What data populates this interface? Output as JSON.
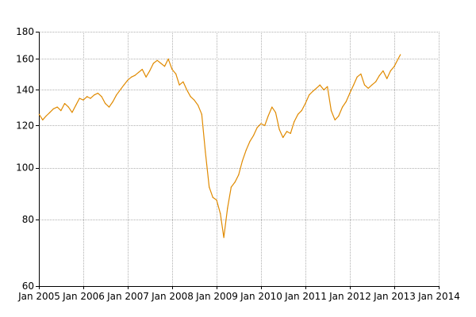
{
  "chart_data": {
    "type": "line",
    "title": "",
    "xlabel": "",
    "ylabel": "",
    "y_scale": "log",
    "grid": true,
    "legend": "none",
    "xlim": [
      "2005-01-01",
      "2014-01-01"
    ],
    "ylim": [
      60,
      180
    ],
    "x_ticks": [
      "Jan 2005",
      "Jan 2006",
      "Jan 2007",
      "Jan 2008",
      "Jan 2009",
      "Jan 2010",
      "Jan 2011",
      "Jan 2012",
      "Jan 2013",
      "Jan 2014"
    ],
    "y_ticks": [
      60,
      80,
      100,
      120,
      140,
      160,
      180
    ],
    "series": [
      {
        "color": "#e08a00",
        "points": [
          [
            "2005-01-03",
            126
          ],
          [
            "2005-02-01",
            123
          ],
          [
            "2005-03-01",
            125
          ],
          [
            "2005-04-01",
            127
          ],
          [
            "2005-05-01",
            129
          ],
          [
            "2005-06-01",
            130
          ],
          [
            "2005-07-01",
            128
          ],
          [
            "2005-08-01",
            132
          ],
          [
            "2005-09-01",
            130
          ],
          [
            "2005-10-01",
            127
          ],
          [
            "2005-11-01",
            131
          ],
          [
            "2005-12-01",
            135
          ],
          [
            "2006-01-01",
            134
          ],
          [
            "2006-02-01",
            136
          ],
          [
            "2006-03-01",
            135
          ],
          [
            "2006-04-01",
            137
          ],
          [
            "2006-05-01",
            138
          ],
          [
            "2006-06-01",
            136
          ],
          [
            "2006-07-01",
            132
          ],
          [
            "2006-08-01",
            130
          ],
          [
            "2006-09-01",
            133
          ],
          [
            "2006-10-01",
            137
          ],
          [
            "2006-11-01",
            140
          ],
          [
            "2006-12-01",
            143
          ],
          [
            "2007-01-01",
            146
          ],
          [
            "2007-02-01",
            148
          ],
          [
            "2007-03-01",
            149
          ],
          [
            "2007-04-01",
            151
          ],
          [
            "2007-05-01",
            153
          ],
          [
            "2007-06-01",
            148
          ],
          [
            "2007-07-01",
            152
          ],
          [
            "2007-08-01",
            157
          ],
          [
            "2007-09-01",
            159
          ],
          [
            "2007-10-01",
            157
          ],
          [
            "2007-11-01",
            155
          ],
          [
            "2007-12-01",
            160
          ],
          [
            "2008-01-01",
            153
          ],
          [
            "2008-02-01",
            150
          ],
          [
            "2008-03-01",
            143
          ],
          [
            "2008-04-01",
            145
          ],
          [
            "2008-05-01",
            140
          ],
          [
            "2008-06-01",
            136
          ],
          [
            "2008-07-01",
            134
          ],
          [
            "2008-08-01",
            131
          ],
          [
            "2008-09-01",
            126
          ],
          [
            "2008-10-01",
            107
          ],
          [
            "2008-11-01",
            92
          ],
          [
            "2008-12-01",
            88
          ],
          [
            "2009-01-01",
            87
          ],
          [
            "2009-02-01",
            82
          ],
          [
            "2009-03-01",
            74
          ],
          [
            "2009-04-01",
            84
          ],
          [
            "2009-05-01",
            92
          ],
          [
            "2009-06-01",
            94
          ],
          [
            "2009-07-01",
            97
          ],
          [
            "2009-08-01",
            103
          ],
          [
            "2009-09-01",
            108
          ],
          [
            "2009-10-01",
            112
          ],
          [
            "2009-11-01",
            115
          ],
          [
            "2009-12-01",
            119
          ],
          [
            "2010-01-01",
            121
          ],
          [
            "2010-02-01",
            120
          ],
          [
            "2010-03-01",
            125
          ],
          [
            "2010-04-01",
            130
          ],
          [
            "2010-05-01",
            127
          ],
          [
            "2010-06-01",
            118
          ],
          [
            "2010-07-01",
            114
          ],
          [
            "2010-08-01",
            117
          ],
          [
            "2010-09-01",
            116
          ],
          [
            "2010-10-01",
            122
          ],
          [
            "2010-11-01",
            126
          ],
          [
            "2010-12-01",
            128
          ],
          [
            "2011-01-01",
            132
          ],
          [
            "2011-02-01",
            137
          ],
          [
            "2011-03-01",
            139
          ],
          [
            "2011-04-01",
            141
          ],
          [
            "2011-05-01",
            143
          ],
          [
            "2011-06-01",
            140
          ],
          [
            "2011-07-01",
            142
          ],
          [
            "2011-08-01",
            128
          ],
          [
            "2011-09-01",
            123
          ],
          [
            "2011-10-01",
            125
          ],
          [
            "2011-11-01",
            130
          ],
          [
            "2011-12-01",
            133
          ],
          [
            "2012-01-01",
            138
          ],
          [
            "2012-02-01",
            143
          ],
          [
            "2012-03-01",
            148
          ],
          [
            "2012-04-01",
            150
          ],
          [
            "2012-05-01",
            143
          ],
          [
            "2012-06-01",
            141
          ],
          [
            "2012-07-01",
            143
          ],
          [
            "2012-08-01",
            145
          ],
          [
            "2012-09-01",
            149
          ],
          [
            "2012-10-01",
            152
          ],
          [
            "2012-11-01",
            147
          ],
          [
            "2012-12-01",
            152
          ],
          [
            "2013-01-01",
            155
          ],
          [
            "2013-02-01",
            160
          ],
          [
            "2013-02-20",
            163
          ]
        ]
      }
    ]
  }
}
